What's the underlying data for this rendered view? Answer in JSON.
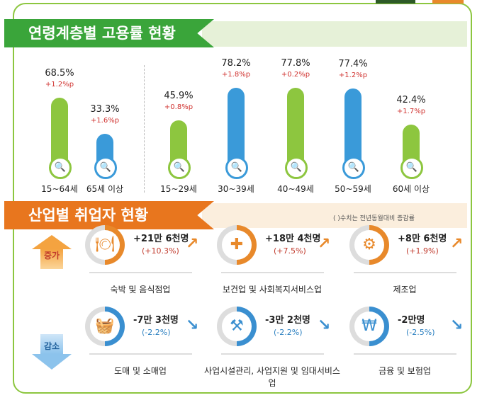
{
  "age_section": {
    "title": "연령계층별 고용률 현황"
  },
  "chart_data": {
    "type": "bar",
    "categories": [
      "15~64세",
      "65세 이상",
      "15~29세",
      "30~39세",
      "40~49세",
      "50~59세",
      "60세 이상"
    ],
    "values": [
      68.5,
      33.3,
      45.9,
      78.2,
      77.8,
      77.4,
      42.4
    ],
    "value_labels": [
      "68.5%",
      "33.3%",
      "45.9%",
      "78.2%",
      "77.8%",
      "77.4%",
      "42.4%"
    ],
    "changes": [
      "+1.2%p",
      "+1.6%p",
      "+0.8%p",
      "+1.8%p",
      "+0.2%p",
      "+1.2%p",
      "+1.7%p"
    ],
    "colors": [
      "#8dc63f",
      "#3a9ad9",
      "#8dc63f",
      "#3a9ad9",
      "#8dc63f",
      "#3a9ad9",
      "#8dc63f"
    ]
  },
  "industry_section": {
    "title": "산업별 취업자 현황",
    "note": "( )수치는 전년동월대비 증감률",
    "increase_label": "증가",
    "decrease_label": "감소",
    "increase": [
      {
        "amount": "+21만 6천명",
        "pct": "(+10.3%)",
        "name": "숙박 및 음식점업",
        "icon": "dining-icon"
      },
      {
        "amount": "+18만 4천명",
        "pct": "(+7.5%)",
        "name": "보건업 및 사회복지서비스업",
        "icon": "medical-kit-icon"
      },
      {
        "amount": "+8만 6천명",
        "pct": "(+1.9%)",
        "name": "제조업",
        "icon": "gears-icon"
      }
    ],
    "decrease": [
      {
        "amount": "-7만 3천명",
        "pct": "(-2.2%)",
        "name": "도매 및 소매업",
        "icon": "basket-icon"
      },
      {
        "amount": "-3만 2천명",
        "pct": "(-2.2%)",
        "name": "사업시설관리, 사업지원 및 임대서비스업",
        "icon": "business-support-icon"
      },
      {
        "amount": "-2만명",
        "pct": "(-2.5%)",
        "name": "금융 및 보험업",
        "icon": "laptop-won-icon"
      }
    ],
    "colors": {
      "increase": "#e8892b",
      "decrease": "#3a8fd0",
      "increase_text": "#c0392b",
      "decrease_text": "#2a7fc0"
    }
  }
}
